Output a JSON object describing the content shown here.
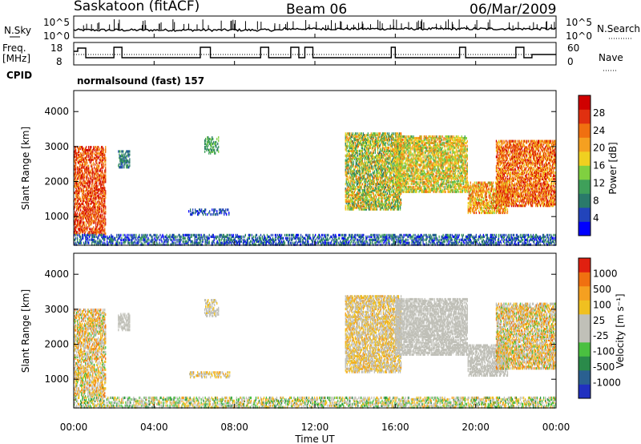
{
  "header": {
    "station": "Saskatoon (fitACF)",
    "beam": "Beam 06",
    "date": "06/Mar/2009"
  },
  "top_panels": {
    "nsky_label": "N.Sky",
    "nsky_ticks": [
      "10^5",
      "10^0"
    ],
    "nsearch_label": "N.Search",
    "nsearch_ticks": [
      "10^5",
      "10^0"
    ],
    "freq_label_1": "Freq.",
    "freq_label_2": "[MHz]",
    "freq_ticks": [
      "18",
      "8"
    ],
    "nave_label": "Nave",
    "nave_ticks": [
      "60",
      "0"
    ],
    "cpid_label": "CPID",
    "cpid_value": "normalsound (fast) 157"
  },
  "chart_data": [
    {
      "type": "heatmap",
      "name": "power-panel",
      "xlabel": "",
      "ylabel": "Slant Range [km]",
      "ylim": [
        180,
        4600
      ],
      "yticks": [
        "1000",
        "2000",
        "3000",
        "4000"
      ],
      "xlim_hours": [
        0,
        24
      ],
      "colorbar_label": "Power [dB]",
      "colorbar_ticks": [
        "28",
        "24",
        "20",
        "16",
        "12",
        "8",
        "4"
      ],
      "colors": [
        "#0000ff",
        "#2244bb",
        "#2a7a6a",
        "#3fa05a",
        "#80d040",
        "#f0d020",
        "#f5a020",
        "#f07010",
        "#e03010",
        "#d00000"
      ]
    },
    {
      "type": "heatmap",
      "name": "velocity-panel",
      "xlabel": "Time UT",
      "ylabel": "Slant Range [km]",
      "ylim": [
        180,
        4600
      ],
      "yticks": [
        "1000",
        "2000",
        "3000",
        "4000"
      ],
      "xticks": [
        "00:00",
        "04:00",
        "08:00",
        "12:00",
        "16:00",
        "20:00",
        "00:00"
      ],
      "xlim_hours": [
        0,
        24
      ],
      "colorbar_label": "Velocity [m s⁻¹]",
      "colorbar_ticks": [
        "1000",
        "500",
        "100",
        "25",
        "-25",
        "-100",
        "-500",
        "-1000"
      ],
      "colors": [
        "#2030c0",
        "#2a6090",
        "#2a8a4a",
        "#4ac040",
        "#c0c0b8",
        "#c0c0b8",
        "#f0c020",
        "#f5a020",
        "#f07010",
        "#e02010"
      ]
    }
  ]
}
